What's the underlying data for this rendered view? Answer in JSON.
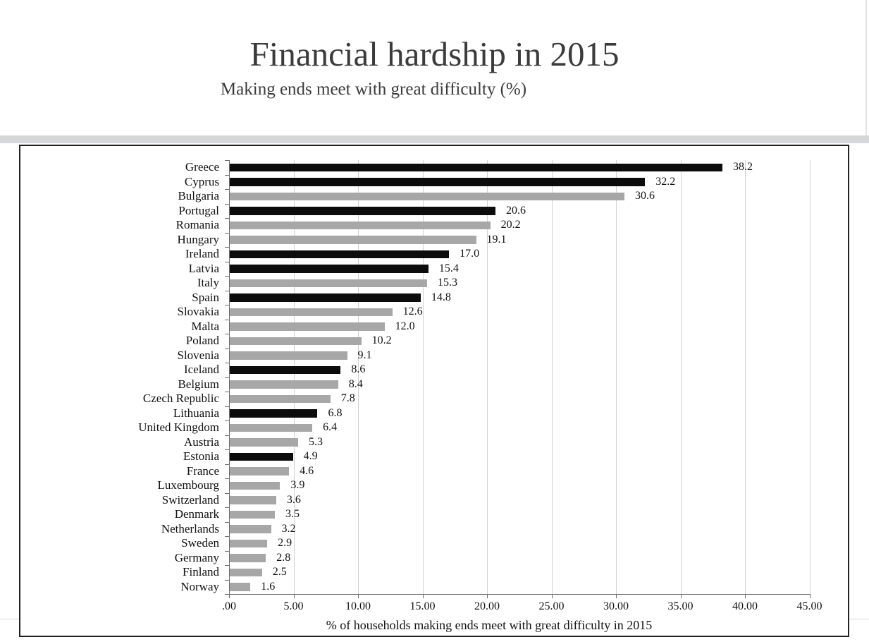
{
  "header": {
    "title": "Financial hardship in 2015",
    "subtitle": "Making ends meet with great difficulty (%)"
  },
  "colors": {
    "bar_black": "#0c0c0c",
    "bar_gray": "#a7a7a7",
    "gridline": "#d2d2d2",
    "axis": "#6e6e6e",
    "title_text": "#3b3b3b",
    "divider_band": "#d5d8da"
  },
  "chart_data": {
    "type": "bar",
    "orientation": "horizontal",
    "title": "Financial hardship in 2015",
    "subtitle": "Making ends meet with great difficulty (%)",
    "xlabel": "% of households making ends meet with great difficulty in 2015",
    "xlim": [
      0,
      45
    ],
    "grid": "vertical-only",
    "legend": "none",
    "x_tick_values": [
      0,
      5,
      10,
      15,
      20,
      25,
      30,
      35,
      40,
      45
    ],
    "x_tick_labels": [
      ".00",
      "5.00",
      "10.00",
      "15.00",
      "20.00",
      "25.00",
      "30.00",
      "35.00",
      "40.00",
      "45.00"
    ],
    "items": [
      {
        "country": "Greece",
        "value": 38.2,
        "label": "38.2",
        "color": "black"
      },
      {
        "country": "Cyprus",
        "value": 32.2,
        "label": "32.2",
        "color": "black"
      },
      {
        "country": "Bulgaria",
        "value": 30.6,
        "label": "30.6",
        "color": "gray"
      },
      {
        "country": "Portugal",
        "value": 20.6,
        "label": "20.6",
        "color": "black"
      },
      {
        "country": "Romania",
        "value": 20.2,
        "label": "20.2",
        "color": "gray"
      },
      {
        "country": "Hungary",
        "value": 19.1,
        "label": "19.1",
        "color": "gray"
      },
      {
        "country": "Ireland",
        "value": 17.0,
        "label": "17.0",
        "color": "black"
      },
      {
        "country": "Latvia",
        "value": 15.4,
        "label": "15.4",
        "color": "black"
      },
      {
        "country": "Italy",
        "value": 15.3,
        "label": "15.3",
        "color": "gray"
      },
      {
        "country": "Spain",
        "value": 14.8,
        "label": "14.8",
        "color": "black"
      },
      {
        "country": "Slovakia",
        "value": 12.6,
        "label": "12.6",
        "color": "gray"
      },
      {
        "country": "Malta",
        "value": 12.0,
        "label": "12.0",
        "color": "gray"
      },
      {
        "country": "Poland",
        "value": 10.2,
        "label": "10.2",
        "color": "gray"
      },
      {
        "country": "Slovenia",
        "value": 9.1,
        "label": "9.1",
        "color": "gray"
      },
      {
        "country": "Iceland",
        "value": 8.6,
        "label": "8.6",
        "color": "black"
      },
      {
        "country": "Belgium",
        "value": 8.4,
        "label": "8.4",
        "color": "gray"
      },
      {
        "country": "Czech Republic",
        "value": 7.8,
        "label": "7.8",
        "color": "gray"
      },
      {
        "country": "Lithuania",
        "value": 6.8,
        "label": "6.8",
        "color": "black"
      },
      {
        "country": "United Kingdom",
        "value": 6.4,
        "label": "6.4",
        "color": "gray"
      },
      {
        "country": "Austria",
        "value": 5.3,
        "label": "5.3",
        "color": "gray"
      },
      {
        "country": "Estonia",
        "value": 4.9,
        "label": "4.9",
        "color": "black"
      },
      {
        "country": "France",
        "value": 4.6,
        "label": "4.6",
        "color": "gray"
      },
      {
        "country": "Luxembourg",
        "value": 3.9,
        "label": "3.9",
        "color": "gray"
      },
      {
        "country": "Switzerland",
        "value": 3.6,
        "label": "3.6",
        "color": "gray"
      },
      {
        "country": "Denmark",
        "value": 3.5,
        "label": "3.5",
        "color": "gray"
      },
      {
        "country": "Netherlands",
        "value": 3.2,
        "label": "3.2",
        "color": "gray"
      },
      {
        "country": "Sweden",
        "value": 2.9,
        "label": "2.9",
        "color": "gray"
      },
      {
        "country": "Germany",
        "value": 2.8,
        "label": "2.8",
        "color": "gray"
      },
      {
        "country": "Finland",
        "value": 2.5,
        "label": "2.5",
        "color": "gray"
      },
      {
        "country": "Norway",
        "value": 1.6,
        "label": "1.6",
        "color": "gray"
      }
    ]
  }
}
